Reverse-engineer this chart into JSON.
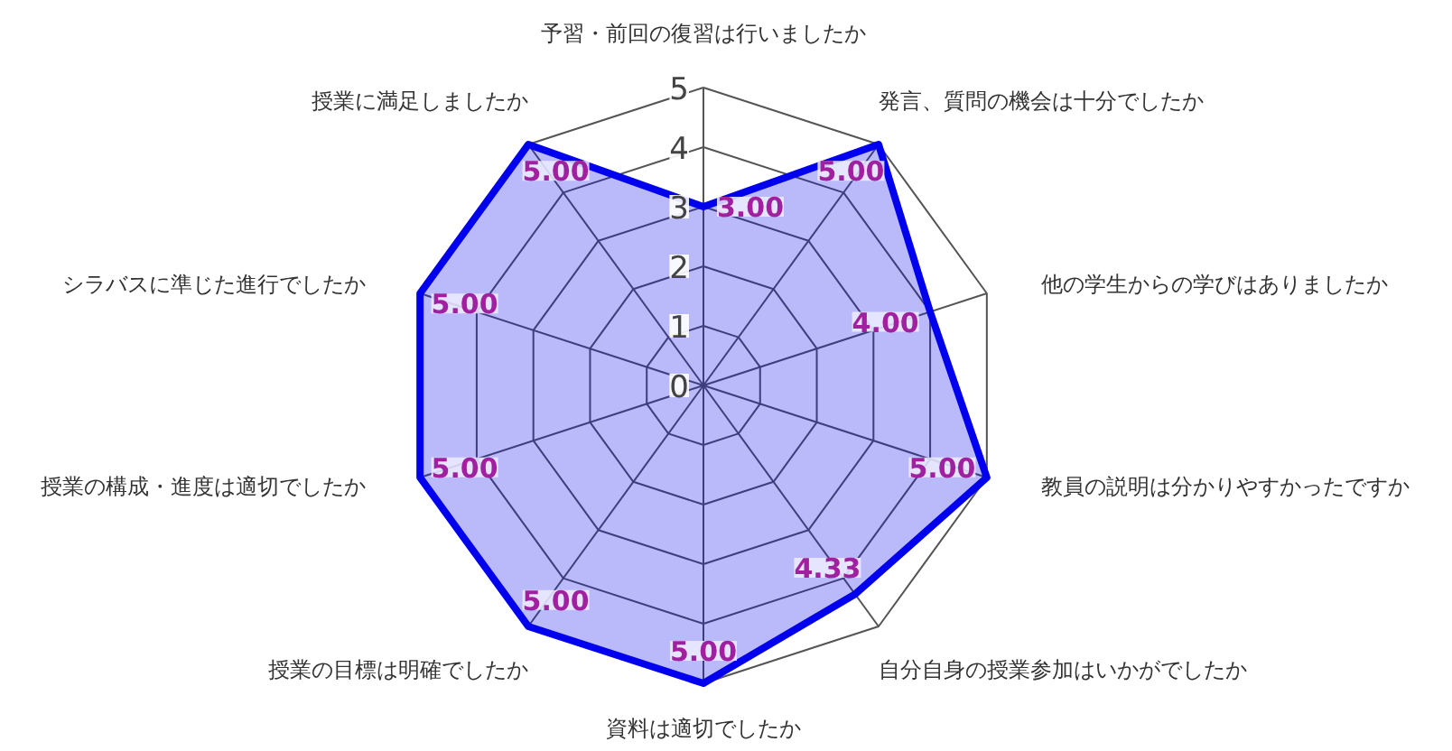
{
  "chart_data": {
    "type": "radar",
    "categories": [
      "予習・前回の復習は行いましたか",
      "発言、質問の機会は十分でしたか",
      "他の学生からの学びはありましたか",
      "教員の説明は分かりやすかったですか",
      "自分自身の授業参加はいかがでしたか",
      "資料は適切でしたか",
      "授業の目標は明確でしたか",
      "授業の構成・進度は適切でしたか",
      "シラバスに準じた進行でしたか",
      "授業に満足しましたか"
    ],
    "series": [
      {
        "color": "#0000ee",
        "values": [
          3,
          5,
          4,
          5,
          4.33,
          5,
          5,
          5,
          5,
          5
        ],
        "value_labels": [
          "3.00",
          "5.00",
          "4.00",
          "5.00",
          "4.33",
          "5.00",
          "5.00",
          "5.00",
          "5.00",
          "5.00"
        ]
      }
    ],
    "ylim": [
      0,
      5
    ],
    "yticks": [
      0,
      1,
      2,
      3,
      4,
      5
    ],
    "grid": true,
    "data_labels": true
  }
}
